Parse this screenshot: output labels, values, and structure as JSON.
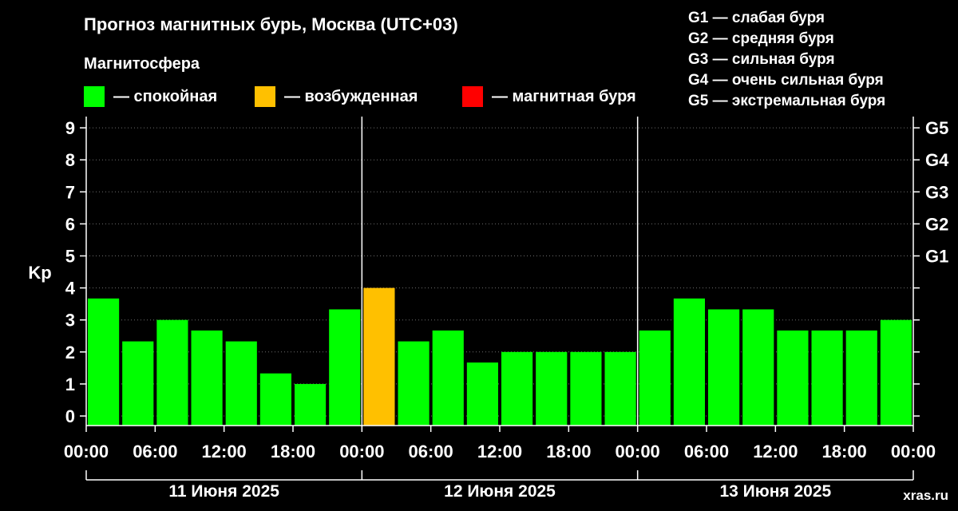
{
  "title": "Прогноз магнитных бурь, Москва (UTC+03)",
  "legend": {
    "title": "Магнитосфера",
    "items": [
      {
        "label": "— спокойная",
        "color": "#00ff00"
      },
      {
        "label": "— возбужденная",
        "color": "#ffc000"
      },
      {
        "label": "— магнитная буря",
        "color": "#ff0000"
      }
    ]
  },
  "g_scale_legend": [
    "G1 — слабая буря",
    "G2 — средняя буря",
    "G3 — сильная буря",
    "G4 — очень сильная буря",
    "G5 — экстремальная буря"
  ],
  "watermark": "xras.ru",
  "colors": {
    "background": "#000000",
    "axis": "#ffffff",
    "quiet": "#00ff00",
    "active": "#ffc000",
    "storm": "#ff0000"
  },
  "chart_data": {
    "type": "bar",
    "ylabel": "Kp",
    "ylim": [
      0,
      9
    ],
    "yticks": [
      0,
      1,
      2,
      3,
      4,
      5,
      6,
      7,
      8,
      9
    ],
    "right_axis_labels": [
      {
        "kp": 5,
        "label": "G1"
      },
      {
        "kp": 6,
        "label": "G2"
      },
      {
        "kp": 7,
        "label": "G3"
      },
      {
        "kp": 8,
        "label": "G4"
      },
      {
        "kp": 9,
        "label": "G5"
      }
    ],
    "x_tick_labels": [
      "00:00",
      "06:00",
      "12:00",
      "18:00",
      "00:00",
      "06:00",
      "12:00",
      "18:00",
      "00:00",
      "06:00",
      "12:00",
      "18:00",
      "00:00"
    ],
    "days": [
      "11 Июня 2025",
      "12 Июня 2025",
      "13 Июня 2025"
    ],
    "bar_interval_hours": 3,
    "values": [
      3.67,
      2.33,
      3.0,
      2.67,
      2.33,
      1.33,
      1.0,
      3.33,
      4.0,
      2.33,
      2.67,
      1.67,
      2.0,
      2.0,
      2.0,
      2.0,
      2.67,
      3.67,
      3.33,
      3.33,
      2.67,
      2.67,
      2.67,
      3.0
    ],
    "grid": true,
    "legend_position": "top"
  }
}
